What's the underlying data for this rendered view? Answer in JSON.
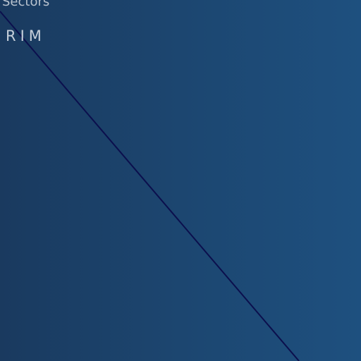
{
  "labels": {
    "sectors": "Sectors",
    "rim": "RIM"
  },
  "colors": {
    "background_left": "#1a3a5f",
    "background_right": "#1e507f",
    "diagonal_line": "#0b0f4d",
    "label_text": "#c7d0db"
  }
}
